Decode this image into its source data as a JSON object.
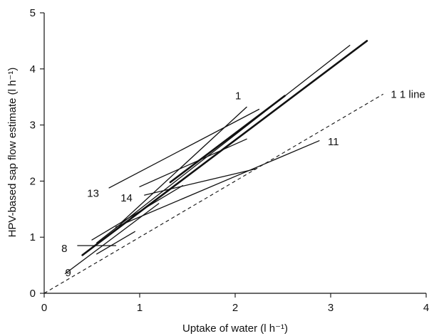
{
  "chart_data": {
    "type": "line",
    "title": "",
    "xlabel": "Uptake of water (l h⁻¹)",
    "ylabel": "HPV-based sap flow estimate (l h⁻¹)",
    "xlim": [
      0,
      4
    ],
    "ylim": [
      0,
      5
    ],
    "xticks": [
      "0",
      "1",
      "2",
      "3",
      "4"
    ],
    "yticks": [
      "0",
      "1",
      "2",
      "3",
      "4",
      "5"
    ],
    "grid": false,
    "reference_line": {
      "label": "1 1 line",
      "points": [
        [
          0,
          0
        ],
        [
          3.55,
          3.55
        ]
      ],
      "style": "dashed"
    },
    "series": [
      {
        "name": "1",
        "points": [
          [
            0.8,
            1.25
          ],
          [
            2.12,
            3.32
          ]
        ],
        "weight": "thin"
      },
      {
        "name": "13",
        "points": [
          [
            0.68,
            1.88
          ],
          [
            2.25,
            3.28
          ]
        ],
        "weight": "thin"
      },
      {
        "name": "14",
        "points": [
          [
            1.0,
            1.9
          ],
          [
            2.12,
            2.75
          ]
        ],
        "weight": "thin"
      },
      {
        "name": "11",
        "points": [
          [
            0.75,
            1.18
          ],
          [
            2.88,
            2.72
          ]
        ],
        "weight": "thin"
      },
      {
        "name": "8",
        "points": [
          [
            0.35,
            0.85
          ],
          [
            0.75,
            0.85
          ]
        ],
        "weight": "thin"
      },
      {
        "name": "9",
        "points": [
          [
            0.22,
            0.35
          ],
          [
            1.2,
            1.6
          ]
        ],
        "weight": "thin"
      },
      {
        "name": "",
        "points": [
          [
            0.4,
            0.68
          ],
          [
            3.38,
            4.5
          ]
        ],
        "weight": "bold"
      },
      {
        "name": "",
        "points": [
          [
            0.55,
            0.9
          ],
          [
            3.2,
            4.42
          ]
        ],
        "weight": "thin"
      },
      {
        "name": "",
        "points": [
          [
            1.32,
            1.98
          ],
          [
            2.52,
            3.52
          ]
        ],
        "weight": "bold"
      },
      {
        "name": "",
        "points": [
          [
            1.05,
            1.75
          ],
          [
            2.22,
            2.22
          ]
        ],
        "weight": "thin"
      },
      {
        "name": "",
        "points": [
          [
            0.5,
            0.95
          ],
          [
            1.45,
            1.92
          ]
        ],
        "weight": "thin"
      },
      {
        "name": "",
        "points": [
          [
            0.55,
            0.7
          ],
          [
            0.95,
            1.1
          ]
        ],
        "weight": "thin"
      }
    ],
    "labels": [
      {
        "text": "1",
        "x": 2.0,
        "y": 3.52
      },
      {
        "text": "13",
        "x": 0.45,
        "y": 1.78
      },
      {
        "text": "14",
        "x": 0.8,
        "y": 1.7
      },
      {
        "text": "11",
        "x": 2.97,
        "y": 2.7
      },
      {
        "text": "8",
        "x": 0.18,
        "y": 0.8
      },
      {
        "text": "9",
        "x": 0.22,
        "y": 0.37
      },
      {
        "text": "1 1 line",
        "x": 3.63,
        "y": 3.55
      }
    ]
  }
}
